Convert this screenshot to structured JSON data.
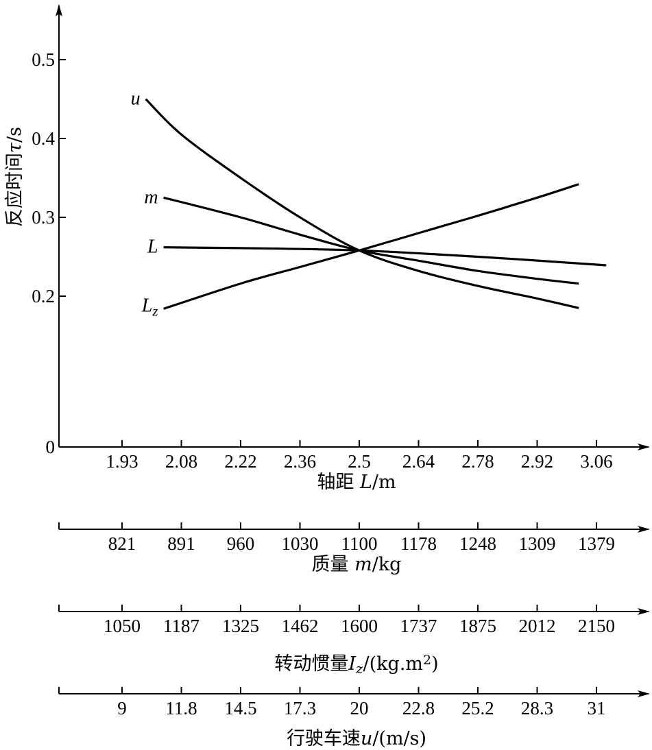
{
  "chart_data": {
    "type": "line",
    "ylabel": {
      "prefix": "反应时间",
      "symbol": "τ",
      "unit": "/s"
    },
    "y_ticks": [
      "0",
      "0.2",
      "0.3",
      "0.4",
      "0.5"
    ],
    "ylim": [
      0,
      0.55
    ],
    "x_axes": [
      {
        "id": "L",
        "title": {
          "prefix": "轴距 ",
          "symbol": "L",
          "unit": "/m"
        },
        "ticks": [
          "1.93",
          "2.08",
          "2.22",
          "2.36",
          "2.5",
          "2.64",
          "2.78",
          "2.92",
          "3.06"
        ]
      },
      {
        "id": "m",
        "title": {
          "prefix": "质量 ",
          "symbol": "m",
          "unit": "/kg"
        },
        "ticks": [
          "821",
          "891",
          "960",
          "1030",
          "1100",
          "1178",
          "1248",
          "1309",
          "1379"
        ]
      },
      {
        "id": "Iz",
        "title": {
          "prefix": "转动惯量",
          "symbol": "I",
          "sub": "z",
          "unit": "/(kg.m",
          "sup": "2",
          "close": ")"
        },
        "ticks": [
          "1050",
          "1187",
          "1325",
          "1462",
          "1600",
          "1737",
          "1875",
          "2012",
          "2150"
        ]
      },
      {
        "id": "u",
        "title": {
          "prefix": "行驶车速",
          "symbol": "u",
          "unit": "/(m/s)"
        },
        "ticks": [
          "9",
          "11.8",
          "14.5",
          "17.3",
          "20",
          "22.8",
          "25.2",
          "28.3",
          "31"
        ]
      }
    ],
    "tick_positions": [
      0,
      1,
      2,
      3,
      4,
      5,
      6,
      7,
      8
    ],
    "series": [
      {
        "name": "u",
        "x": [
          0.4,
          1.0,
          2.0,
          3.0,
          4.0,
          5.0,
          6.0,
          7.0,
          7.7
        ],
        "y": [
          0.45,
          0.405,
          0.35,
          0.3,
          0.258,
          0.232,
          0.213,
          0.197,
          0.185
        ]
      },
      {
        "name": "m",
        "x": [
          0.7,
          2.0,
          3.0,
          4.0,
          5.0,
          6.0,
          7.0,
          7.7
        ],
        "y": [
          0.325,
          0.3,
          0.278,
          0.258,
          0.245,
          0.232,
          0.222,
          0.216
        ]
      },
      {
        "name": "L",
        "x": [
          0.7,
          2.0,
          4.0,
          6.0,
          8.0,
          8.0
        ],
        "y": [
          0.262,
          0.261,
          0.258,
          0.25,
          0.24,
          0.24
        ]
      },
      {
        "name": "L",
        "sub": "z",
        "x": [
          0.7,
          2.0,
          3.0,
          4.0,
          5.0,
          6.0,
          7.0,
          7.7
        ],
        "y": [
          0.184,
          0.216,
          0.237,
          0.258,
          0.28,
          0.302,
          0.325,
          0.342
        ]
      }
    ]
  }
}
